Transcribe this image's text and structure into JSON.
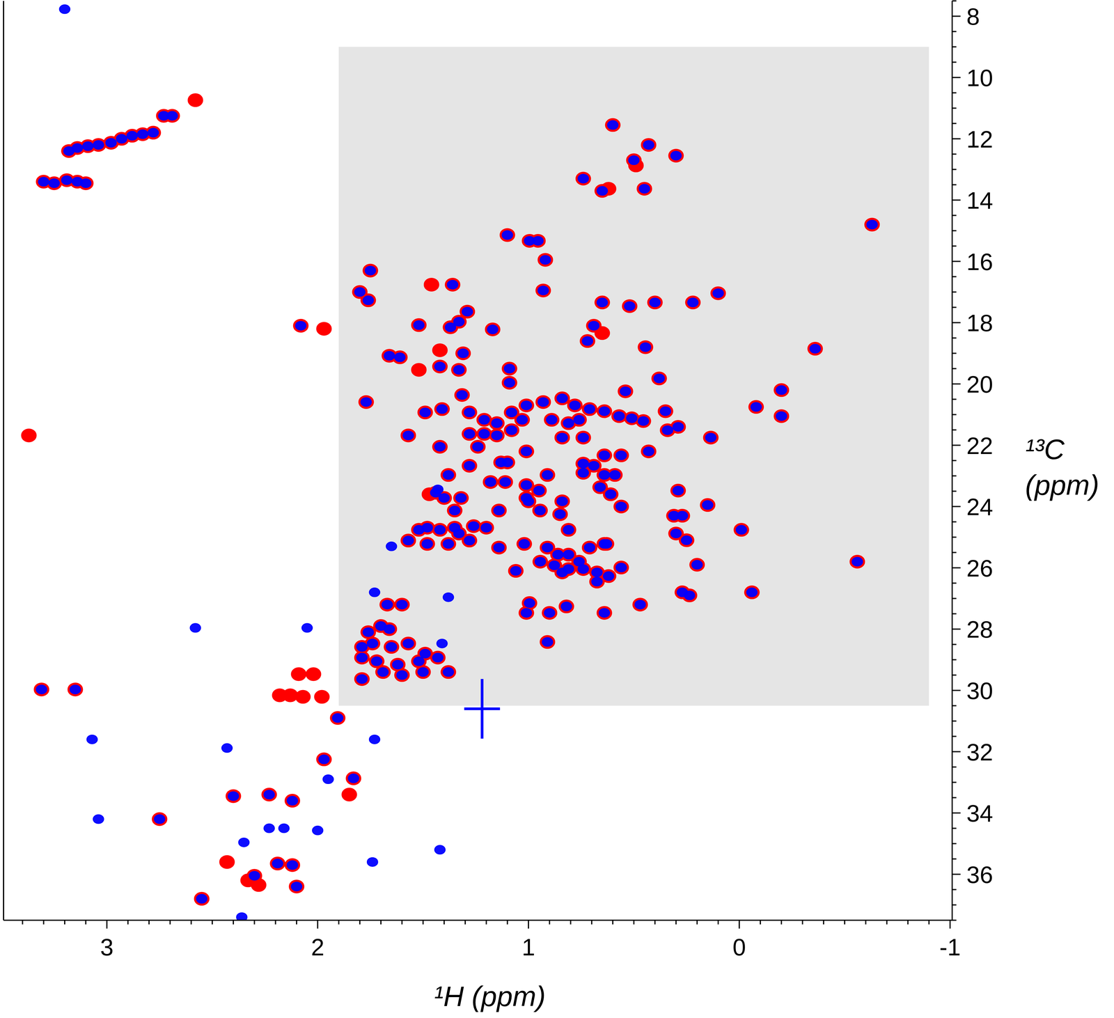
{
  "chart_data": {
    "type": "scatter",
    "x_label": "¹H (ppm)",
    "y_label": "¹³C (ppm)",
    "xlim": [
      3.49,
      -1.01
    ],
    "ylim": [
      37.5,
      7.5
    ],
    "xticks": [
      3,
      2,
      1,
      0,
      -1
    ],
    "yticks": [
      8,
      10,
      12,
      14,
      16,
      18,
      20,
      22,
      24,
      26,
      28,
      30,
      32,
      34,
      36
    ],
    "grid": false,
    "shaded_region": {
      "x": [
        1.9,
        -0.9
      ],
      "y": [
        9,
        30.5
      ]
    },
    "series": [
      {
        "color": "#ff0000",
        "marker": "circle",
        "x": [
          3.18,
          3.14,
          3.09,
          3.04,
          2.98,
          2.93,
          2.88,
          2.83,
          2.78,
          2.73,
          2.69,
          3.3,
          3.25,
          3.19,
          3.14,
          3.1,
          2.08,
          3.31,
          3.15,
          1.905,
          1.97,
          1.83,
          2.4,
          2.23,
          2.12,
          2.75,
          2.19,
          2.12,
          2.3,
          2.1,
          2.55,
          0.6,
          0.43,
          0.3,
          0.5,
          0.74,
          0.65,
          0.45,
          -0.63,
          1.1,
          0.995,
          0.955,
          0.92,
          1.75,
          1.8,
          1.76,
          1.36,
          0.93,
          0.65,
          0.52,
          0.4,
          0.22,
          0.1,
          1.52,
          1.37,
          1.33,
          1.29,
          1.17,
          0.69,
          0.72,
          0.445,
          -0.36,
          1.66,
          1.61,
          1.42,
          1.31,
          1.33,
          1.09,
          1.09,
          0.38,
          -0.2,
          0.54,
          -0.08,
          -0.2,
          1.77,
          1.49,
          1.41,
          1.315,
          1.28,
          1.21,
          1.15,
          1.08,
          1.01,
          1.28,
          1.21,
          1.15,
          1.08,
          1.03,
          0.93,
          0.84,
          0.78,
          0.71,
          0.64,
          0.57,
          0.51,
          0.455,
          0.89,
          0.81,
          0.76,
          0.35,
          0.34,
          0.29,
          0.135,
          0.43,
          1.57,
          1.42,
          1.24,
          1.28,
          1.13,
          1.1,
          1.01,
          0.84,
          0.74,
          0.64,
          0.56,
          1.38,
          0.91,
          1.18,
          1.11,
          1.01,
          0.74,
          0.69,
          0.74,
          0.64,
          0.59,
          1.44,
          1.4,
          1.32,
          1.01,
          0.95,
          1.0,
          0.945,
          0.84,
          0.66,
          0.61,
          0.56,
          0.29,
          0.15,
          1.14,
          1.35,
          1.52,
          1.48,
          1.42,
          1.35,
          1.26,
          1.2,
          1.57,
          1.48,
          1.38,
          1.28,
          1.33,
          1.14,
          0.85,
          0.81,
          0.91,
          0.86,
          0.81,
          0.76,
          0.71,
          0.64,
          0.944,
          0.877,
          0.81,
          0.74,
          0.675,
          0.62,
          0.84,
          1.02,
          1.06,
          0.995,
          1.01,
          0.9,
          0.82,
          0.91,
          0.64,
          0.56,
          0.675,
          0.63,
          0.31,
          0.27,
          0.3,
          0.25,
          0.2,
          -0.01,
          -0.56,
          -0.06,
          0.27,
          0.236,
          0.47,
          1.67,
          1.6,
          1.66,
          1.76,
          1.7,
          1.79,
          1.74,
          1.65,
          1.57,
          1.79,
          1.72,
          1.62,
          1.52,
          1.43,
          1.49,
          1.79,
          1.69,
          1.6,
          1.5,
          1.38,
          2.58,
          3.37,
          1.97,
          2.18,
          2.13,
          2.07,
          1.98,
          2.09,
          2.02,
          1.85,
          2.43,
          2.33,
          2.28,
          0.49,
          0.62,
          1.46,
          0.65,
          1.52,
          1.42,
          1.47
        ],
        "values": [
          12.4,
          12.3,
          12.24,
          12.2,
          12.13,
          12.0,
          11.9,
          11.85,
          11.8,
          11.25,
          11.25,
          13.4,
          13.45,
          13.35,
          13.4,
          13.45,
          18.1,
          29.97,
          29.97,
          30.9,
          32.25,
          32.87,
          33.45,
          33.4,
          33.6,
          34.2,
          35.65,
          35.7,
          36.05,
          36.4,
          36.8,
          11.55,
          12.2,
          12.55,
          12.7,
          13.3,
          13.7,
          13.63,
          14.8,
          15.14,
          15.33,
          15.33,
          15.95,
          16.3,
          17.0,
          17.27,
          16.76,
          16.95,
          17.34,
          17.46,
          17.34,
          17.34,
          17.04,
          18.08,
          18.15,
          17.97,
          17.64,
          18.22,
          18.1,
          18.6,
          18.8,
          18.85,
          19.08,
          19.13,
          19.43,
          19.0,
          19.54,
          19.5,
          19.96,
          19.82,
          20.2,
          20.24,
          20.75,
          21.05,
          20.59,
          20.93,
          20.82,
          20.36,
          20.93,
          21.17,
          21.28,
          20.93,
          20.7,
          21.63,
          21.63,
          21.68,
          21.51,
          21.17,
          20.59,
          20.47,
          20.7,
          20.82,
          20.89,
          21.05,
          21.12,
          21.21,
          21.17,
          21.28,
          21.17,
          20.89,
          21.51,
          21.4,
          21.75,
          22.2,
          21.68,
          22.05,
          22.05,
          22.67,
          22.56,
          22.56,
          22.2,
          21.75,
          21.75,
          22.33,
          22.33,
          22.97,
          22.97,
          23.2,
          23.2,
          23.3,
          22.6,
          22.67,
          22.9,
          22.97,
          22.97,
          23.55,
          23.72,
          23.72,
          23.72,
          23.48,
          23.83,
          24.13,
          23.83,
          23.37,
          23.6,
          24.0,
          23.48,
          23.95,
          24.13,
          24.13,
          24.76,
          24.69,
          24.76,
          24.69,
          24.64,
          24.69,
          25.11,
          25.22,
          25.22,
          25.11,
          24.88,
          25.34,
          24.25,
          24.76,
          25.34,
          25.57,
          25.57,
          25.8,
          25.34,
          25.22,
          25.8,
          25.92,
          26.04,
          26.04,
          26.15,
          26.27,
          26.15,
          25.22,
          26.1,
          27.15,
          27.47,
          27.47,
          27.26,
          28.42,
          27.47,
          25.99,
          26.45,
          25.22,
          24.3,
          24.3,
          24.88,
          25.1,
          25.9,
          24.76,
          25.8,
          26.8,
          26.8,
          26.9,
          27.2,
          27.2,
          27.2,
          28.0,
          28.1,
          27.9,
          28.58,
          28.47,
          28.58,
          28.47,
          28.93,
          29.05,
          29.16,
          29.05,
          28.93,
          28.8,
          29.63,
          29.4,
          29.5,
          29.4,
          29.4,
          10.74,
          21.68,
          18.2,
          30.16,
          30.16,
          30.21,
          30.21,
          29.47,
          29.47,
          33.4,
          35.6,
          36.2,
          36.35,
          12.87,
          13.63,
          16.76,
          18.34,
          19.54,
          18.9,
          23.6
        ]
      },
      {
        "color": "#0000ff",
        "marker": "circle",
        "x": [
          3.18,
          3.14,
          3.09,
          3.04,
          2.98,
          2.93,
          2.88,
          2.83,
          2.78,
          2.73,
          2.69,
          3.3,
          3.25,
          3.19,
          3.14,
          3.1,
          2.08,
          3.31,
          3.15,
          1.905,
          1.97,
          1.83,
          2.4,
          2.23,
          2.12,
          2.75,
          2.19,
          2.12,
          2.3,
          2.1,
          2.55,
          0.6,
          0.43,
          0.3,
          0.5,
          0.74,
          0.65,
          0.45,
          -0.63,
          1.1,
          0.995,
          0.955,
          0.92,
          1.75,
          1.8,
          1.76,
          1.36,
          0.93,
          0.65,
          0.52,
          0.4,
          0.22,
          0.1,
          1.52,
          1.37,
          1.33,
          1.29,
          1.17,
          0.69,
          0.72,
          0.445,
          -0.36,
          1.66,
          1.61,
          1.42,
          1.31,
          1.33,
          1.09,
          1.09,
          0.38,
          -0.2,
          0.54,
          -0.08,
          -0.2,
          1.77,
          1.49,
          1.41,
          1.315,
          1.28,
          1.21,
          1.15,
          1.08,
          1.01,
          1.28,
          1.21,
          1.15,
          1.08,
          1.03,
          0.93,
          0.84,
          0.78,
          0.71,
          0.64,
          0.57,
          0.51,
          0.455,
          0.89,
          0.81,
          0.76,
          0.35,
          0.34,
          0.29,
          0.135,
          0.43,
          1.57,
          1.42,
          1.24,
          1.28,
          1.13,
          1.1,
          1.01,
          0.84,
          0.74,
          0.64,
          0.56,
          1.38,
          0.91,
          1.18,
          1.11,
          1.01,
          0.74,
          0.69,
          0.74,
          0.64,
          0.59,
          1.44,
          1.4,
          1.32,
          1.01,
          0.95,
          1.0,
          0.945,
          0.84,
          0.66,
          0.61,
          0.56,
          0.29,
          0.15,
          1.14,
          1.35,
          1.52,
          1.48,
          1.42,
          1.35,
          1.26,
          1.2,
          1.57,
          1.48,
          1.38,
          1.28,
          1.33,
          1.14,
          0.85,
          0.81,
          0.91,
          0.86,
          0.81,
          0.76,
          0.71,
          0.64,
          0.944,
          0.877,
          0.81,
          0.74,
          0.675,
          0.62,
          0.84,
          1.02,
          1.06,
          0.995,
          1.01,
          0.9,
          0.82,
          0.91,
          0.64,
          0.56,
          0.675,
          0.63,
          0.31,
          0.27,
          0.3,
          0.25,
          0.2,
          -0.01,
          -0.56,
          -0.06,
          0.27,
          0.236,
          0.47,
          1.67,
          1.6,
          1.66,
          1.76,
          1.7,
          1.79,
          1.74,
          1.65,
          1.57,
          1.79,
          1.72,
          1.62,
          1.52,
          1.43,
          1.49,
          1.79,
          1.69,
          1.6,
          1.5,
          1.38,
          3.2,
          2.58,
          2.05,
          2.43,
          3.07,
          1.95,
          1.73,
          2.23,
          2.16,
          2.0,
          3.04,
          2.35,
          1.42,
          1.74,
          2.36,
          1.43,
          1.73,
          1.65,
          1.41,
          1.38
        ],
        "values": [
          12.4,
          12.3,
          12.24,
          12.2,
          12.13,
          12.0,
          11.9,
          11.85,
          11.8,
          11.25,
          11.25,
          13.4,
          13.45,
          13.35,
          13.4,
          13.45,
          18.1,
          29.97,
          29.97,
          30.9,
          32.25,
          32.87,
          33.45,
          33.4,
          33.6,
          34.2,
          35.65,
          35.7,
          36.05,
          36.4,
          36.8,
          11.55,
          12.2,
          12.55,
          12.7,
          13.3,
          13.7,
          13.63,
          14.8,
          15.14,
          15.33,
          15.33,
          15.95,
          16.3,
          17.0,
          17.27,
          16.76,
          16.95,
          17.34,
          17.46,
          17.34,
          17.34,
          17.04,
          18.08,
          18.15,
          17.97,
          17.64,
          18.22,
          18.1,
          18.6,
          18.8,
          18.85,
          19.08,
          19.13,
          19.43,
          19.0,
          19.54,
          19.5,
          19.96,
          19.82,
          20.2,
          20.24,
          20.75,
          21.05,
          20.59,
          20.93,
          20.82,
          20.36,
          20.93,
          21.17,
          21.28,
          20.93,
          20.7,
          21.63,
          21.63,
          21.68,
          21.51,
          21.17,
          20.59,
          20.47,
          20.7,
          20.82,
          20.89,
          21.05,
          21.12,
          21.21,
          21.17,
          21.28,
          21.17,
          20.89,
          21.51,
          21.4,
          21.75,
          22.2,
          21.68,
          22.05,
          22.05,
          22.67,
          22.56,
          22.56,
          22.2,
          21.75,
          21.75,
          22.33,
          22.33,
          22.97,
          22.97,
          23.2,
          23.2,
          23.3,
          22.6,
          22.67,
          22.9,
          22.97,
          22.97,
          23.55,
          23.72,
          23.72,
          23.72,
          23.48,
          23.83,
          24.13,
          23.83,
          23.37,
          23.6,
          24.0,
          23.48,
          23.95,
          24.13,
          24.13,
          24.76,
          24.69,
          24.76,
          24.69,
          24.64,
          24.69,
          25.11,
          25.22,
          25.22,
          25.11,
          24.88,
          25.34,
          24.25,
          24.76,
          25.34,
          25.57,
          25.57,
          25.8,
          25.34,
          25.22,
          25.8,
          25.92,
          26.04,
          26.04,
          26.15,
          26.27,
          26.15,
          25.22,
          26.1,
          27.15,
          27.47,
          27.47,
          27.26,
          28.42,
          27.47,
          25.99,
          26.45,
          25.22,
          24.3,
          24.3,
          24.88,
          25.1,
          25.9,
          24.76,
          25.8,
          26.8,
          26.8,
          26.9,
          27.2,
          27.2,
          27.2,
          28.0,
          28.1,
          27.9,
          28.58,
          28.47,
          28.58,
          28.47,
          28.93,
          29.05,
          29.16,
          29.05,
          28.93,
          28.8,
          29.63,
          29.4,
          29.5,
          29.4,
          29.4,
          7.77,
          27.96,
          27.96,
          31.88,
          31.6,
          32.9,
          31.6,
          34.5,
          34.5,
          34.57,
          34.2,
          34.96,
          35.2,
          35.6,
          37.4,
          23.44,
          26.8,
          25.3,
          28.47,
          26.96
        ]
      },
      {
        "color": "#0000ff",
        "marker": "plus",
        "x": [
          1.22
        ],
        "values": [
          30.6
        ]
      }
    ]
  }
}
